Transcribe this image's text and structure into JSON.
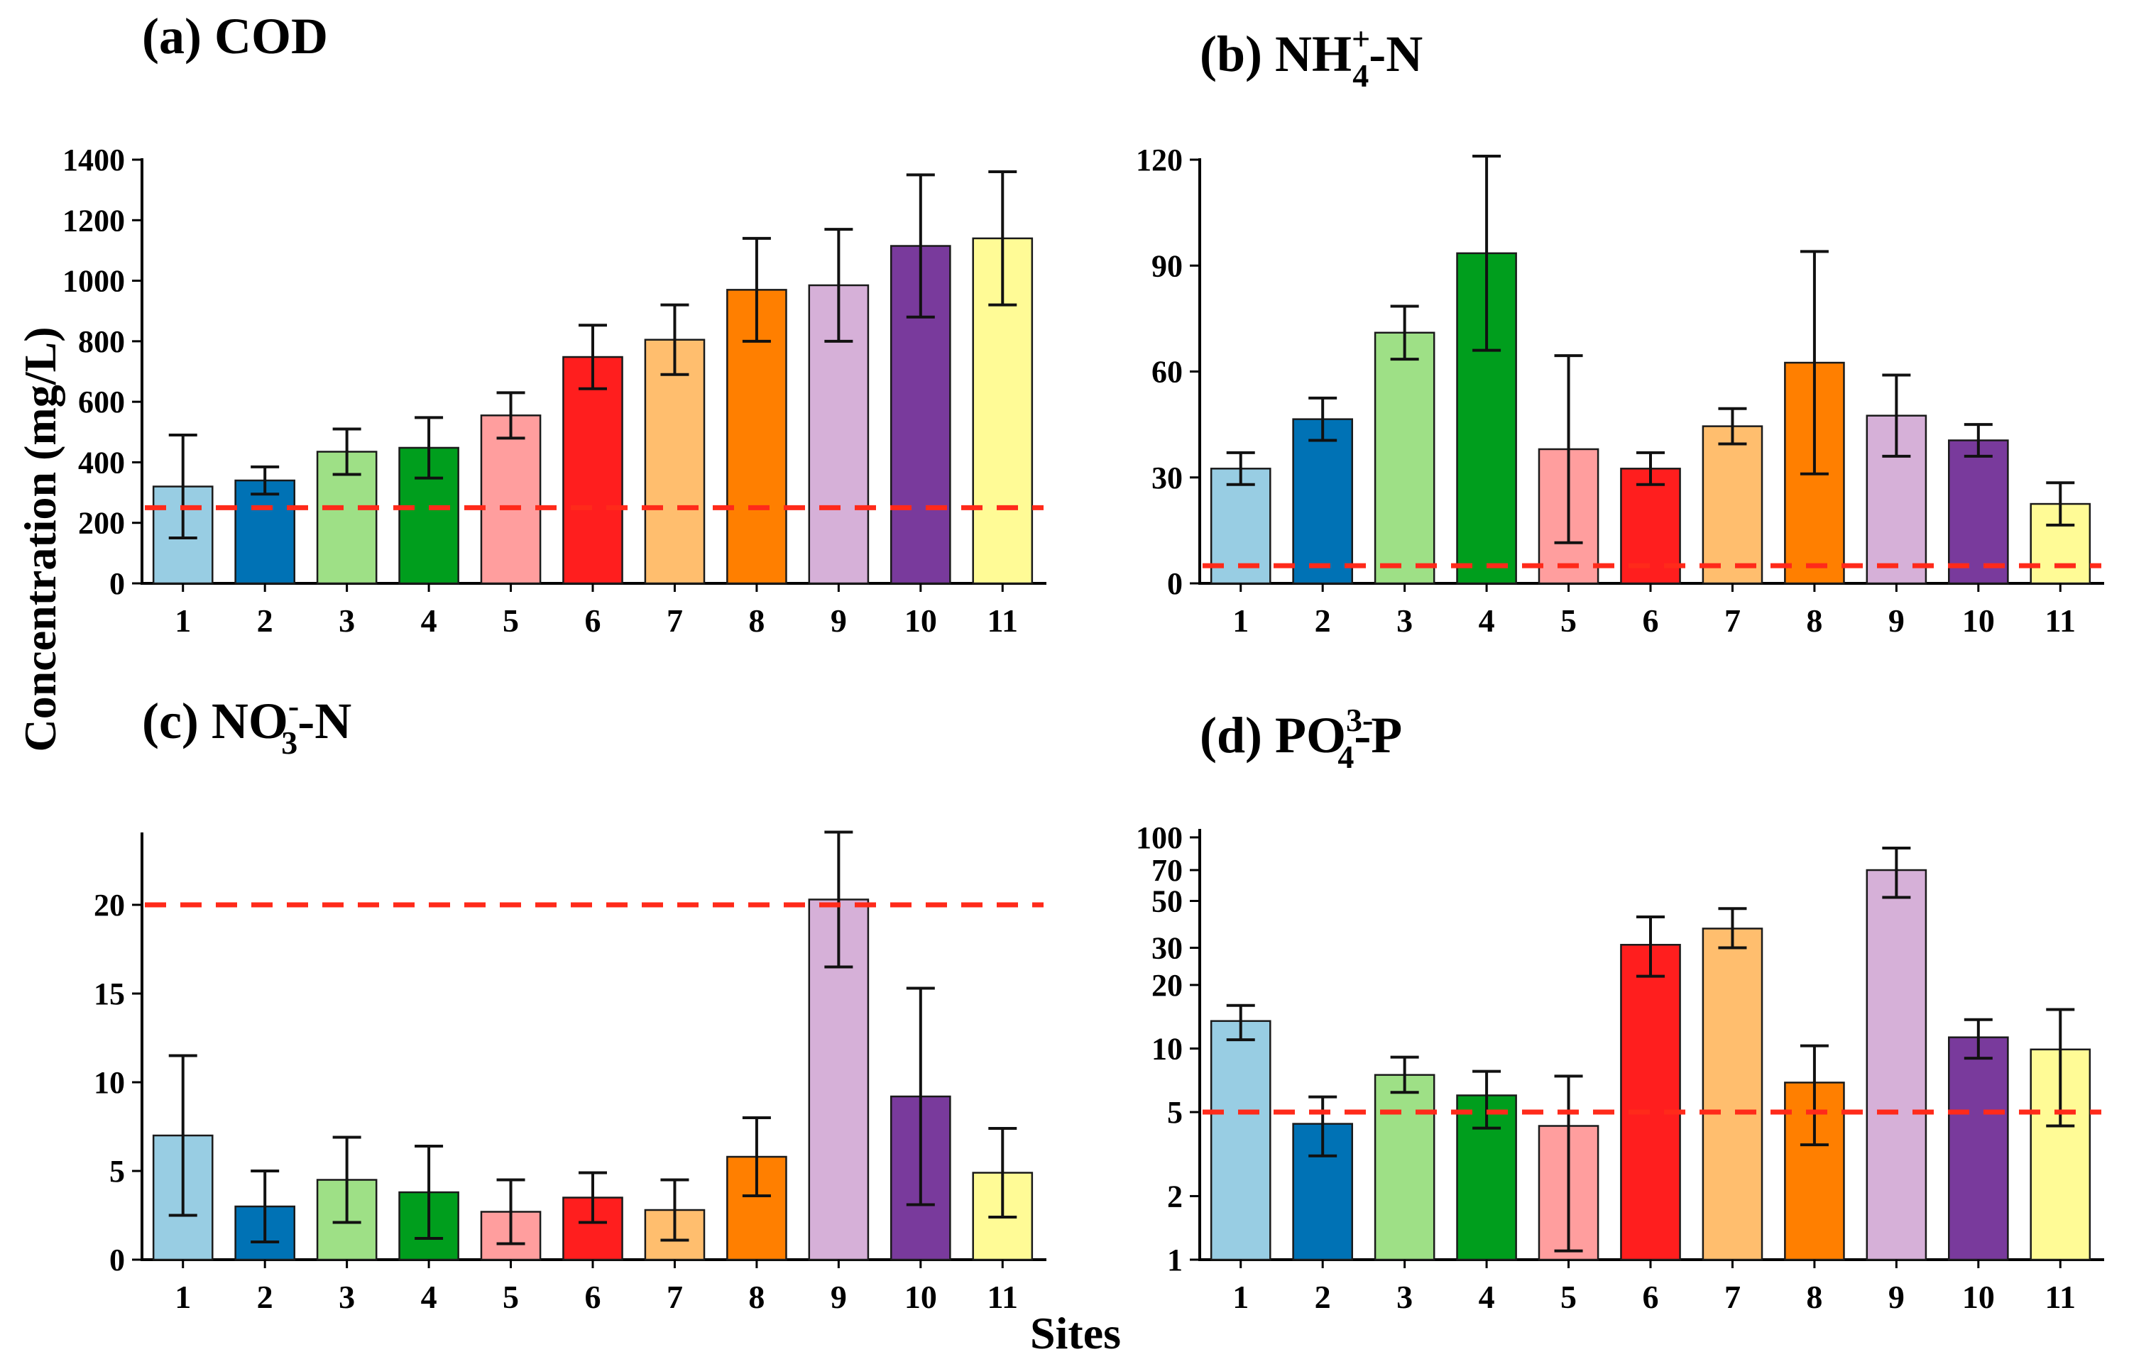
{
  "ylabel": "Concentration (mg/L)",
  "xlabel": "Sites",
  "colors": [
    "#98cde3",
    "#0072b5",
    "#9ee086",
    "#009e1d",
    "#ff9e9e",
    "#ff1e1e",
    "#ffbe6e",
    "#ff7f00",
    "#d6b0d8",
    "#793a9c",
    "#fffb96"
  ],
  "threshold_color": "#ff2a1a",
  "chart_data": [
    {
      "id": "a",
      "type": "bar",
      "title": "(a) COD",
      "title_main": "COD",
      "title_sub": "",
      "title_sup": "",
      "title_tail": "",
      "categories": [
        "1",
        "2",
        "3",
        "4",
        "5",
        "6",
        "7",
        "8",
        "9",
        "10",
        "11"
      ],
      "values": [
        320,
        340,
        435,
        448,
        555,
        748,
        805,
        970,
        985,
        1115,
        1140
      ],
      "errors": [
        170,
        45,
        75,
        100,
        75,
        105,
        115,
        170,
        185,
        235,
        220
      ],
      "threshold": 250,
      "yscale": "linear",
      "ylim": [
        0,
        1400
      ],
      "yticks": [
        0,
        200,
        400,
        600,
        800,
        1000,
        1200,
        1400
      ],
      "ytick_labels": [
        "0",
        "200",
        "400",
        "600",
        "800",
        "1000",
        "1200",
        "1400"
      ]
    },
    {
      "id": "b",
      "type": "bar",
      "title": "(b) NH4+-N",
      "title_main": "NH",
      "title_sub": "4",
      "title_sup": "+",
      "title_tail": "-N",
      "categories": [
        "1",
        "2",
        "3",
        "4",
        "5",
        "6",
        "7",
        "8",
        "9",
        "10",
        "11"
      ],
      "values": [
        32.5,
        46.5,
        71,
        93.5,
        38,
        32.5,
        44.5,
        62.5,
        47.5,
        40.5,
        22.5
      ],
      "errors": [
        4.5,
        6,
        7.5,
        27.5,
        26.5,
        4.5,
        5,
        31.5,
        11.5,
        4.5,
        6
      ],
      "threshold": 5,
      "yscale": "linear",
      "ylim": [
        0,
        120
      ],
      "yticks": [
        0,
        30,
        60,
        90,
        120
      ],
      "ytick_labels": [
        "0",
        "30",
        "60",
        "90",
        "120"
      ]
    },
    {
      "id": "c",
      "type": "bar",
      "title": "(c) NO3--N",
      "title_main": "NO",
      "title_sub": "3",
      "title_sup": "-",
      "title_tail": "-N",
      "categories": [
        "1",
        "2",
        "3",
        "4",
        "5",
        "6",
        "7",
        "8",
        "9",
        "10",
        "11"
      ],
      "values": [
        7.0,
        3.0,
        4.5,
        3.8,
        2.7,
        3.5,
        2.8,
        5.8,
        20.3,
        9.2,
        4.9
      ],
      "errors": [
        4.5,
        2.0,
        2.4,
        2.6,
        1.8,
        1.4,
        1.7,
        2.2,
        3.8,
        6.1,
        2.5
      ],
      "threshold": 20,
      "yscale": "linear",
      "ylim": [
        0,
        24
      ],
      "yticks": [
        0,
        5,
        10,
        15,
        20
      ],
      "ytick_labels": [
        "0",
        "5",
        "10",
        "15",
        "20"
      ]
    },
    {
      "id": "d",
      "type": "bar",
      "title": "(d) PO43--P",
      "title_main": "PO",
      "title_sub": "4",
      "title_sup": "3-",
      "title_tail": "-P",
      "categories": [
        "1",
        "2",
        "3",
        "4",
        "5",
        "6",
        "7",
        "8",
        "9",
        "10",
        "11"
      ],
      "values": [
        13.5,
        4.4,
        7.5,
        6.0,
        4.3,
        31,
        37,
        6.9,
        70,
        11.3,
        9.9
      ],
      "err_low": [
        11,
        3.1,
        6.2,
        4.2,
        1.1,
        22,
        30,
        3.5,
        52,
        9.0,
        4.3
      ],
      "err_high": [
        16,
        5.9,
        9.1,
        7.8,
        7.4,
        42,
        46,
        10.3,
        89,
        13.7,
        15.3
      ],
      "threshold": 5,
      "yscale": "log",
      "ylim": [
        1,
        108
      ],
      "yticks": [
        1,
        2,
        5,
        10,
        20,
        30,
        50,
        70,
        100
      ],
      "ytick_labels": [
        "1",
        "2",
        "5",
        "10",
        "20",
        "30",
        "50",
        "70",
        "100"
      ]
    }
  ]
}
